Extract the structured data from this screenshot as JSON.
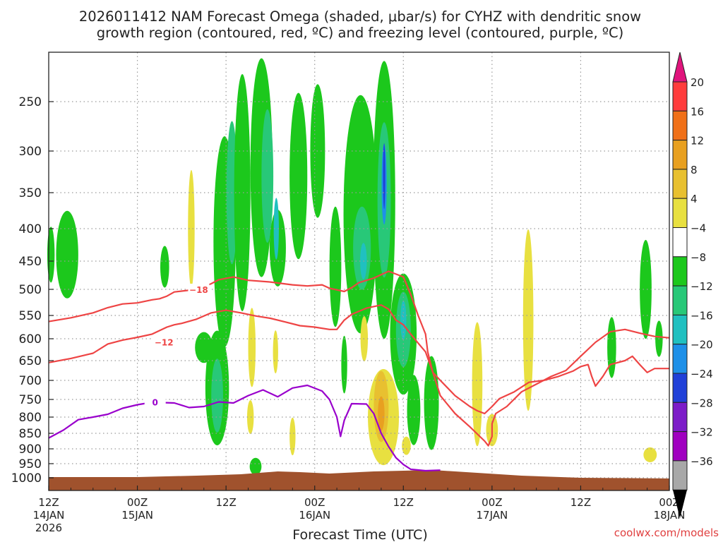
{
  "title_line1": "2026011412 NAM Forecast Omega (shaded, μbar/s) for CYHZ with dendritic snow",
  "title_line2": "growth region (contoured, red, ºC) and freezing level (contoured, purple, ºC)",
  "xlabel": "Forecast Time (UTC)",
  "credit": "coolwx.com/models",
  "colors": {
    "grid": "#9a9a9a",
    "terrain": "#a0522d",
    "dgz": "#ee4444",
    "freezing": "#9900cc",
    "text": "#222222",
    "credit": "#e04040"
  },
  "chart_data": {
    "type": "heatmap",
    "title": "2026011412 NAM Forecast Omega (shaded, μbar/s) for CYHZ with dendritic snow growth region (contoured, red, ºC) and freezing level (contoured, purple, ºC)",
    "xlabel": "Forecast Time (UTC)",
    "ylabel": "",
    "x_range_hours": [
      0,
      84
    ],
    "y_axis": "pressure (hPa), inverted, log-like",
    "y_range": [
      1025,
      200
    ],
    "y_ticks": [
      250,
      300,
      350,
      400,
      450,
      500,
      550,
      600,
      650,
      700,
      750,
      800,
      850,
      900,
      950,
      1000
    ],
    "x_ticks": [
      {
        "hour": 0,
        "line1": "12Z",
        "line2": "14JAN",
        "line3": "2026"
      },
      {
        "hour": 12,
        "line1": "00Z",
        "line2": "15JAN",
        "line3": ""
      },
      {
        "hour": 24,
        "line1": "12Z",
        "line2": "",
        "line3": ""
      },
      {
        "hour": 36,
        "line1": "00Z",
        "line2": "16JAN",
        "line3": ""
      },
      {
        "hour": 48,
        "line1": "12Z",
        "line2": "",
        "line3": ""
      },
      {
        "hour": 60,
        "line1": "00Z",
        "line2": "17JAN",
        "line3": ""
      },
      {
        "hour": 72,
        "line1": "12Z",
        "line2": "",
        "line3": ""
      },
      {
        "hour": 84,
        "line1": "00Z",
        "line2": "18JAN",
        "line3": ""
      }
    ],
    "grid": true,
    "colorbar": {
      "labels": [
        "20",
        "16",
        "12",
        "8",
        "4",
        "−4",
        "−8",
        "−12",
        "−16",
        "−20",
        "−24",
        "−28",
        "−32",
        "−36"
      ],
      "colors": [
        "#ff3c3c",
        "#f07018",
        "#e8a020",
        "#e8c030",
        "#e8e040",
        "#ffffff",
        "#1cc81c",
        "#28c878",
        "#20c0c0",
        "#1e90e8",
        "#2040d8",
        "#7c1cc8",
        "#a000c0",
        "#a8a8a8"
      ],
      "top_arrow": "#e0147c",
      "bottom_arrow": "#000000"
    },
    "omega_regions": [
      {
        "color": "#1cc81c",
        "x": 0.3,
        "p": 440,
        "w": 1.0,
        "h": 90
      },
      {
        "color": "#1cc81c",
        "x": 2.5,
        "p": 440,
        "w": 3.0,
        "h": 140
      },
      {
        "color": "#1cc81c",
        "x": 15.7,
        "p": 460,
        "w": 1.2,
        "h": 70
      },
      {
        "color": "#1cc81c",
        "x": 21.0,
        "p": 620,
        "w": 2.4,
        "h": 70
      },
      {
        "color": "#1cc81c",
        "x": 22.8,
        "p": 720,
        "w": 3.2,
        "h": 300
      },
      {
        "color": "#28c878",
        "x": 22.8,
        "p": 740,
        "w": 1.6,
        "h": 200
      },
      {
        "color": "#1cc81c",
        "x": 23.8,
        "p": 420,
        "w": 3.0,
        "h": 310
      },
      {
        "color": "#28c878",
        "x": 24.8,
        "p": 350,
        "w": 1.5,
        "h": 180
      },
      {
        "color": "#1cc81c",
        "x": 26.2,
        "p": 350,
        "w": 2.2,
        "h": 300
      },
      {
        "color": "#1cc81c",
        "x": 28.8,
        "p": 320,
        "w": 3.0,
        "h": 260
      },
      {
        "color": "#28c878",
        "x": 29.6,
        "p": 330,
        "w": 1.6,
        "h": 160
      },
      {
        "color": "#1cc81c",
        "x": 31.0,
        "p": 430,
        "w": 2.2,
        "h": 120
      },
      {
        "color": "#20c0c0",
        "x": 30.8,
        "p": 400,
        "w": 0.7,
        "h": 90
      },
      {
        "color": "#1cc81c",
        "x": 33.8,
        "p": 330,
        "w": 2.4,
        "h": 200
      },
      {
        "color": "#1cc81c",
        "x": 36.4,
        "p": 300,
        "w": 2.0,
        "h": 150
      },
      {
        "color": "#1cc81c",
        "x": 38.8,
        "p": 460,
        "w": 1.6,
        "h": 200
      },
      {
        "color": "#1cc81c",
        "x": 42.2,
        "p": 380,
        "w": 4.6,
        "h": 320
      },
      {
        "color": "#28c878",
        "x": 42.4,
        "p": 430,
        "w": 2.4,
        "h": 130
      },
      {
        "color": "#20c0c0",
        "x": 42.6,
        "p": 450,
        "w": 0.9,
        "h": 60
      },
      {
        "color": "#1cc81c",
        "x": 45.4,
        "p": 360,
        "w": 3.0,
        "h": 360
      },
      {
        "color": "#28c878",
        "x": 45.4,
        "p": 360,
        "w": 1.8,
        "h": 200
      },
      {
        "color": "#1e90e8",
        "x": 45.4,
        "p": 340,
        "w": 0.7,
        "h": 100
      },
      {
        "color": "#2040d8",
        "x": 45.4,
        "p": 330,
        "w": 0.3,
        "h": 80
      },
      {
        "color": "#1cc81c",
        "x": 48.0,
        "p": 590,
        "w": 3.6,
        "h": 260
      },
      {
        "color": "#28c878",
        "x": 48.0,
        "p": 580,
        "w": 2.0,
        "h": 160
      },
      {
        "color": "#20c0c0",
        "x": 48.0,
        "p": 560,
        "w": 0.8,
        "h": 80
      },
      {
        "color": "#1cc81c",
        "x": 49.4,
        "p": 780,
        "w": 1.8,
        "h": 200
      },
      {
        "color": "#1cc81c",
        "x": 51.8,
        "p": 760,
        "w": 2.0,
        "h": 260
      },
      {
        "color": "#1cc81c",
        "x": 76.2,
        "p": 620,
        "w": 1.2,
        "h": 140
      },
      {
        "color": "#1cc81c",
        "x": 80.8,
        "p": 500,
        "w": 1.6,
        "h": 180
      },
      {
        "color": "#1cc81c",
        "x": 82.6,
        "p": 600,
        "w": 1.0,
        "h": 80
      },
      {
        "color": "#1cc81c",
        "x": 28.0,
        "p": 960,
        "w": 1.6,
        "h": 60
      },
      {
        "color": "#1cc81c",
        "x": 40.0,
        "p": 660,
        "w": 0.8,
        "h": 140
      },
      {
        "color": "#e8e040",
        "x": 19.3,
        "p": 400,
        "w": 0.9,
        "h": 170
      },
      {
        "color": "#e8e040",
        "x": 27.5,
        "p": 620,
        "w": 1.0,
        "h": 180
      },
      {
        "color": "#e8e040",
        "x": 30.7,
        "p": 630,
        "w": 0.7,
        "h": 100
      },
      {
        "color": "#e8e040",
        "x": 27.3,
        "p": 800,
        "w": 0.9,
        "h": 100
      },
      {
        "color": "#e8e040",
        "x": 33.0,
        "p": 860,
        "w": 0.8,
        "h": 120
      },
      {
        "color": "#e8e040",
        "x": 42.7,
        "p": 600,
        "w": 1.0,
        "h": 100
      },
      {
        "color": "#e8e040",
        "x": 45.3,
        "p": 800,
        "w": 4.2,
        "h": 280
      },
      {
        "color": "#e8c030",
        "x": 45.0,
        "p": 770,
        "w": 2.0,
        "h": 200
      },
      {
        "color": "#e8a020",
        "x": 45.0,
        "p": 790,
        "w": 0.9,
        "h": 100
      },
      {
        "color": "#e8e040",
        "x": 48.4,
        "p": 890,
        "w": 1.2,
        "h": 60
      },
      {
        "color": "#e8e040",
        "x": 58.0,
        "p": 710,
        "w": 1.4,
        "h": 320
      },
      {
        "color": "#e8e040",
        "x": 60.0,
        "p": 840,
        "w": 1.6,
        "h": 100
      },
      {
        "color": "#e8e040",
        "x": 64.9,
        "p": 560,
        "w": 1.4,
        "h": 360
      },
      {
        "color": "#e8e040",
        "x": 81.4,
        "p": 920,
        "w": 1.8,
        "h": 50
      }
    ],
    "dgz_contours": [
      {
        "label": "−18",
        "label_x": 20.3,
        "label_p": 500,
        "points": [
          [
            0,
            563
          ],
          [
            3,
            555
          ],
          [
            6,
            545
          ],
          [
            8,
            535
          ],
          [
            10,
            528
          ],
          [
            12,
            526
          ],
          [
            14,
            520
          ],
          [
            15,
            518
          ],
          [
            16,
            513
          ],
          [
            17,
            505
          ],
          [
            20,
            500
          ],
          [
            22,
            490
          ],
          [
            23,
            483
          ],
          [
            25,
            478
          ],
          [
            27,
            484
          ],
          [
            30,
            487
          ],
          [
            33,
            492
          ],
          [
            35,
            494
          ],
          [
            37,
            492
          ],
          [
            38,
            498
          ],
          [
            40,
            504
          ],
          [
            41,
            497
          ],
          [
            42,
            488
          ],
          [
            44,
            480
          ],
          [
            46,
            468
          ],
          [
            48,
            478
          ],
          [
            49,
            510
          ],
          [
            50,
            550
          ],
          [
            51,
            590
          ],
          [
            51.3,
            630
          ],
          [
            52,
            680
          ],
          [
            53,
            740
          ],
          [
            55,
            790
          ],
          [
            57,
            830
          ],
          [
            59,
            875
          ],
          [
            59.5,
            890
          ],
          [
            60,
            860
          ],
          [
            60,
            820
          ],
          [
            60.5,
            790
          ],
          [
            62,
            770
          ],
          [
            64,
            730
          ],
          [
            66,
            710
          ],
          [
            68,
            690
          ],
          [
            70,
            675
          ],
          [
            72,
            640
          ],
          [
            74,
            608
          ],
          [
            76,
            585
          ],
          [
            78,
            580
          ],
          [
            80,
            588
          ],
          [
            82,
            595
          ],
          [
            84,
            598
          ]
        ]
      },
      {
        "label": "−12",
        "label_x": 15.6,
        "label_p": 607,
        "points": [
          [
            0,
            655
          ],
          [
            3,
            645
          ],
          [
            6,
            633
          ],
          [
            8,
            612
          ],
          [
            10,
            603
          ],
          [
            12,
            597
          ],
          [
            14,
            590
          ],
          [
            16,
            575
          ],
          [
            17,
            570
          ],
          [
            18,
            567
          ],
          [
            20,
            558
          ],
          [
            22,
            545
          ],
          [
            24,
            540
          ],
          [
            26,
            545
          ],
          [
            28,
            551
          ],
          [
            30,
            556
          ],
          [
            32,
            564
          ],
          [
            34,
            572
          ],
          [
            36,
            575
          ],
          [
            38,
            580
          ],
          [
            39,
            580
          ],
          [
            40,
            560
          ],
          [
            41,
            548
          ],
          [
            43,
            536
          ],
          [
            45,
            530
          ],
          [
            46,
            538
          ],
          [
            47,
            560
          ],
          [
            48,
            570
          ],
          [
            49,
            590
          ],
          [
            50,
            610
          ],
          [
            51,
            630
          ],
          [
            52,
            680
          ],
          [
            53,
            700
          ],
          [
            54,
            720
          ],
          [
            55,
            740
          ],
          [
            57,
            770
          ],
          [
            58,
            782
          ],
          [
            59,
            790
          ],
          [
            60,
            770
          ],
          [
            61,
            748
          ],
          [
            63,
            730
          ],
          [
            65,
            705
          ],
          [
            67,
            700
          ],
          [
            69,
            690
          ],
          [
            71,
            676
          ],
          [
            72,
            665
          ],
          [
            73,
            660
          ],
          [
            73.5,
            690
          ],
          [
            74,
            715
          ],
          [
            75,
            690
          ],
          [
            76,
            660
          ],
          [
            78,
            650
          ],
          [
            79,
            640
          ],
          [
            80,
            660
          ],
          [
            81,
            680
          ],
          [
            82,
            670
          ],
          [
            84,
            670
          ]
        ]
      }
    ],
    "freezing_contour": {
      "label": "0",
      "label_x": 14.4,
      "label_p": 757,
      "points": [
        [
          0,
          865
        ],
        [
          2,
          840
        ],
        [
          4,
          808
        ],
        [
          6,
          800
        ],
        [
          8,
          792
        ],
        [
          10,
          775
        ],
        [
          12,
          765
        ],
        [
          14,
          758
        ],
        [
          17,
          760
        ],
        [
          19,
          773
        ],
        [
          21,
          770
        ],
        [
          23,
          757
        ],
        [
          25,
          760
        ],
        [
          27,
          740
        ],
        [
          29,
          725
        ],
        [
          31,
          743
        ],
        [
          33,
          720
        ],
        [
          35,
          713
        ],
        [
          37,
          728
        ],
        [
          38,
          750
        ],
        [
          39,
          800
        ],
        [
          39.5,
          860
        ],
        [
          40,
          810
        ],
        [
          41,
          762
        ],
        [
          43,
          763
        ],
        [
          44,
          790
        ],
        [
          45,
          850
        ],
        [
          46,
          893
        ],
        [
          47,
          930
        ],
        [
          48,
          953
        ],
        [
          49,
          970
        ],
        [
          51,
          975
        ],
        [
          53,
          973
        ]
      ]
    }
  }
}
